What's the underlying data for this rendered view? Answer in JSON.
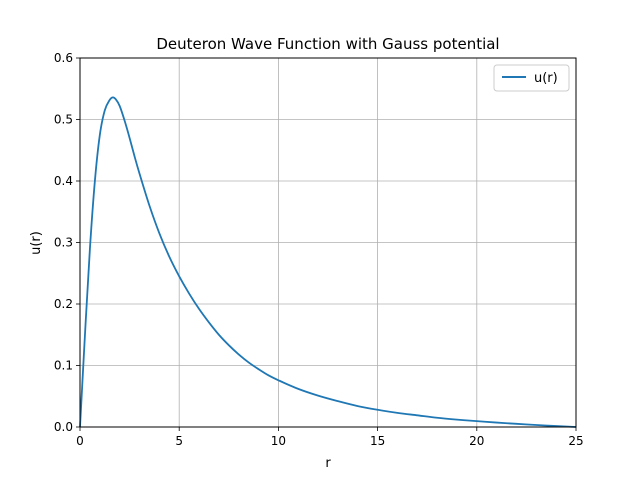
{
  "chart_data": {
    "type": "line",
    "title": "Deuteron Wave Function with Gauss potential",
    "xlabel": "r",
    "ylabel": "u(r)",
    "xlim": [
      0,
      25
    ],
    "ylim": [
      0,
      0.6
    ],
    "xticks": [
      "0",
      "5",
      "10",
      "15",
      "20",
      "25"
    ],
    "yticks": [
      "0.0",
      "0.1",
      "0.2",
      "0.3",
      "0.4",
      "0.5",
      "0.6"
    ],
    "grid": true,
    "legend_position": "top-right",
    "series": [
      {
        "name": "u(r)",
        "color": "#1f77b4",
        "x": [
          0,
          0.25,
          0.5,
          0.75,
          1.0,
          1.25,
          1.5,
          1.65,
          1.8,
          2.0,
          2.25,
          2.5,
          2.75,
          3.0,
          3.5,
          4.0,
          4.5,
          5.0,
          5.5,
          6.0,
          6.5,
          7.0,
          7.5,
          8.0,
          8.5,
          9.0,
          9.5,
          10.0,
          11.0,
          12.0,
          13.0,
          14.0,
          15.0,
          16.0,
          17.0,
          18.0,
          19.0,
          20.0,
          21.0,
          22.0,
          23.0,
          24.0,
          25.0
        ],
        "y": [
          0.0,
          0.15,
          0.29,
          0.4,
          0.475,
          0.515,
          0.532,
          0.536,
          0.533,
          0.522,
          0.498,
          0.47,
          0.44,
          0.412,
          0.36,
          0.315,
          0.277,
          0.245,
          0.217,
          0.192,
          0.17,
          0.15,
          0.133,
          0.118,
          0.105,
          0.094,
          0.084,
          0.076,
          0.062,
          0.051,
          0.042,
          0.034,
          0.028,
          0.023,
          0.019,
          0.015,
          0.012,
          0.0095,
          0.0072,
          0.0052,
          0.0033,
          0.0016,
          0.0
        ]
      }
    ]
  }
}
